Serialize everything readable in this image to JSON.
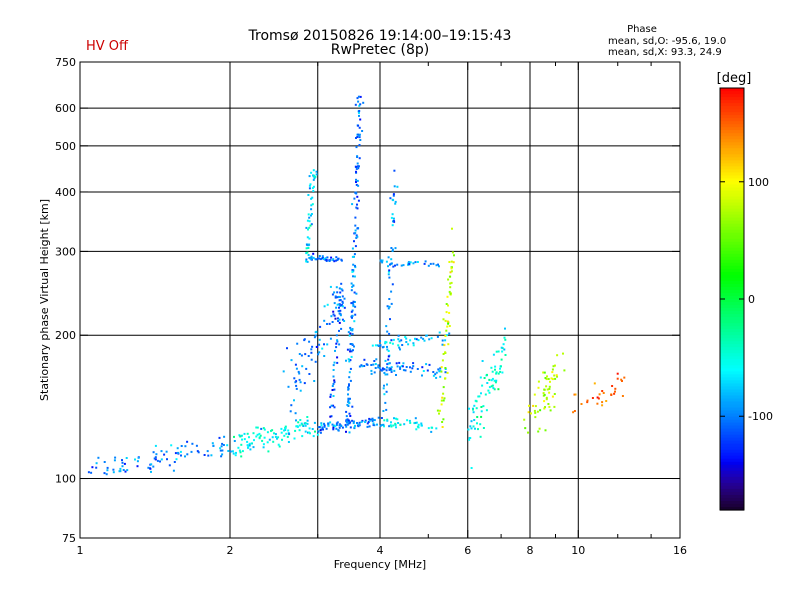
{
  "status": {
    "hv_label": "HV Off",
    "hv_color": "#cc0000"
  },
  "header": {
    "title_line1": "Tromsø 20150826 19:14:00–19:15:43",
    "title_line2": "RwPretec (8p)"
  },
  "phase_info": {
    "heading": "Phase",
    "line_o": "mean, sd,O: -95.6, 19.0",
    "line_x": "mean, sd,X:  93.3, 24.9"
  },
  "colorbar": {
    "label": "[deg]",
    "ticks": [
      "100",
      "0",
      "-100"
    ],
    "tick_values": [
      100,
      0,
      -100
    ],
    "range": [
      -180,
      180
    ]
  },
  "chart_data": {
    "type": "scatter",
    "title": "Tromsø 20150826 19:14:00–19:15:43",
    "subtitle": "RwPretec (8p)",
    "xlabel": "Frequency [MHz]",
    "ylabel": "Stationary phase Virtual Height [km]",
    "xscale": "log",
    "yscale": "log",
    "xlim": [
      1,
      16
    ],
    "ylim": [
      75,
      750
    ],
    "x_ticks": [
      1,
      2,
      4,
      6,
      8,
      10,
      16
    ],
    "x_tick_labels": [
      "1",
      "2",
      "4",
      "6",
      "8",
      "10",
      "16"
    ],
    "x_minor_ticks": [
      3,
      5,
      7,
      9,
      12,
      14
    ],
    "y_ticks": [
      75,
      100,
      200,
      300,
      400,
      500,
      600,
      750
    ],
    "y_tick_labels": [
      "75",
      "100",
      "200",
      "300",
      "400",
      "500",
      "600",
      "750"
    ],
    "grid": true,
    "grid_x": [
      2,
      3,
      4,
      6,
      8,
      10
    ],
    "grid_y": [
      100,
      200,
      300,
      400,
      500,
      600
    ],
    "color_variable": "phase (deg)",
    "trace_segments": [
      {
        "trace": "low-altitude ramp",
        "from": [
          1.05,
          103
        ],
        "to": [
          2.0,
          118
        ],
        "spread": 5,
        "phase": -100,
        "n": 90
      },
      {
        "trace": "ramp continued",
        "from": [
          2.0,
          118
        ],
        "to": [
          3.0,
          128
        ],
        "spread": 6,
        "phase": -60,
        "n": 110
      },
      {
        "trace": "E-layer plateau",
        "from": [
          3.0,
          128
        ],
        "to": [
          4.0,
          132
        ],
        "spread": 3,
        "phase": -105,
        "n": 80
      },
      {
        "trace": "E-layer extension",
        "from": [
          4.0,
          132
        ],
        "to": [
          5.2,
          128
        ],
        "spread": 3,
        "phase": -60,
        "n": 40
      },
      {
        "trace": "cusp column near 3.5 MHz",
        "from": [
          3.45,
          130
        ],
        "to": [
          3.65,
          640
        ],
        "spread": 10,
        "phase": -100,
        "n": 160
      },
      {
        "trace": "secondary column near 3.3 MHz",
        "from": [
          3.2,
          140
        ],
        "to": [
          3.35,
          260
        ],
        "spread": 8,
        "phase": -110,
        "n": 50
      },
      {
        "trace": "F trace near 2.9 MHz",
        "from": [
          2.85,
          280
        ],
        "to": [
          2.95,
          460
        ],
        "spread": 4,
        "phase": -70,
        "n": 50
      },
      {
        "trace": "F foot 290 km",
        "from": [
          2.9,
          292
        ],
        "to": [
          3.4,
          287
        ],
        "spread": 3,
        "phase": -100,
        "n": 40
      },
      {
        "trace": "diagonal spread",
        "from": [
          2.6,
          150
        ],
        "to": [
          3.4,
          240
        ],
        "spread": 25,
        "phase": -100,
        "n": 90
      },
      {
        "trace": "O-mode band 170 km",
        "from": [
          3.6,
          172
        ],
        "to": [
          5.5,
          168
        ],
        "spread": 5,
        "phase": -100,
        "n": 70
      },
      {
        "trace": "band 190 km",
        "from": [
          3.8,
          190
        ],
        "to": [
          5.5,
          198
        ],
        "spread": 6,
        "phase": -80,
        "n": 50
      },
      {
        "trace": "scatter column 4.2 MHz",
        "from": [
          4.1,
          140
        ],
        "to": [
          4.3,
          450
        ],
        "spread": 10,
        "phase": -95,
        "n": 60
      },
      {
        "trace": "band 280 km",
        "from": [
          4.0,
          285
        ],
        "to": [
          5.3,
          280
        ],
        "spread": 5,
        "phase": -90,
        "n": 30
      },
      {
        "trace": "column near 5.5 MHz",
        "from": [
          5.3,
          130
        ],
        "to": [
          5.6,
          330
        ],
        "spread": 10,
        "phase": 80,
        "n": 60
      },
      {
        "trace": "scatter 6-7 MHz",
        "from": [
          6.0,
          125
        ],
        "to": [
          7.2,
          190
        ],
        "spread": 18,
        "phase": -50,
        "n": 80
      },
      {
        "trace": "scatter 8-9 MHz",
        "from": [
          7.8,
          130
        ],
        "to": [
          9.3,
          170
        ],
        "spread": 15,
        "phase": 80,
        "n": 60
      },
      {
        "trace": "scatter 10-12 MHz",
        "from": [
          9.6,
          140
        ],
        "to": [
          12.5,
          160
        ],
        "spread": 10,
        "phase": 150,
        "n": 30
      }
    ]
  }
}
